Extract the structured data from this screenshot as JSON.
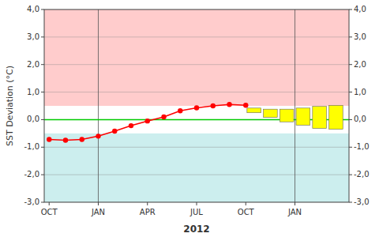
{
  "chart_data": {
    "type": "line",
    "title": "",
    "xlabel": "2012",
    "ylabel": "SST Deviation (°C)",
    "xlim": [
      -0.3,
      18.3
    ],
    "xticks": [
      {
        "value": 0,
        "label": "OCT"
      },
      {
        "value": 3,
        "label": "JAN"
      },
      {
        "value": 6,
        "label": "APR"
      },
      {
        "value": 9,
        "label": "JUL"
      },
      {
        "value": 12,
        "label": "OCT"
      },
      {
        "value": 15,
        "label": "JAN"
      }
    ],
    "ylim": [
      -3.0,
      4.0
    ],
    "yticks": [
      {
        "value": -3.0,
        "label": "-3,0"
      },
      {
        "value": -2.0,
        "label": "-2,0"
      },
      {
        "value": -1.0,
        "label": "-1,0"
      },
      {
        "value": 0.0,
        "label": "0,0"
      },
      {
        "value": 1.0,
        "label": "1,0"
      },
      {
        "value": 2.0,
        "label": "2,0"
      },
      {
        "value": 3.0,
        "label": "3,0"
      },
      {
        "value": 4.0,
        "label": "4,0"
      }
    ],
    "grid": true,
    "bands": [
      {
        "from": 0.5,
        "to": 4.0,
        "color": "#FFCCCC"
      },
      {
        "from": -0.5,
        "to": 0.5,
        "color": "#FFFFFF"
      },
      {
        "from": -3.0,
        "to": -0.5,
        "color": "#CCEEEE"
      }
    ],
    "zero_line": {
      "value": 0,
      "color": "#00CC00"
    },
    "vlines": [
      3,
      15
    ],
    "series": [
      {
        "type": "line",
        "color": "#FF0000",
        "marker": "circle",
        "x": [
          0,
          1,
          2,
          3,
          4,
          5,
          6,
          7,
          8,
          9,
          10,
          11,
          12
        ],
        "values": [
          -0.72,
          -0.75,
          -0.72,
          -0.6,
          -0.42,
          -0.22,
          -0.05,
          0.1,
          0.32,
          0.43,
          0.5,
          0.55,
          0.52
        ]
      },
      {
        "type": "bar",
        "color": "#FFFF00",
        "x": [
          12.5,
          13.5,
          14.5,
          15.5,
          16.5,
          17.5
        ],
        "low": [
          0.25,
          0.08,
          -0.08,
          -0.2,
          -0.32,
          -0.35
        ],
        "high": [
          0.42,
          0.38,
          0.38,
          0.42,
          0.48,
          0.52
        ]
      }
    ]
  }
}
